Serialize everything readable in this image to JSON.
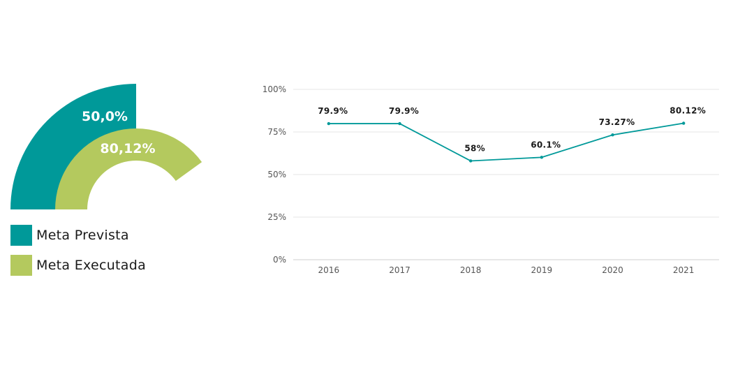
{
  "colors": {
    "previsto": "#009999",
    "executado": "#b4c95e",
    "line": "#009999",
    "grid": "#e6e6e6"
  },
  "legend": {
    "previsto_label": "Meta Prevista",
    "executado_label": "Meta Executada"
  },
  "chart_data": [
    {
      "type": "gauge",
      "series": [
        {
          "name": "Meta Prevista",
          "value": 50.0,
          "label": "50,0%"
        },
        {
          "name": "Meta Executada",
          "value": 80.12,
          "label": "80,12%"
        }
      ],
      "range": [
        0,
        100
      ]
    },
    {
      "type": "line",
      "x": [
        "2016",
        "2017",
        "2018",
        "2019",
        "2020",
        "2021"
      ],
      "series": [
        {
          "values": [
            79.9,
            79.9,
            58,
            60.1,
            73.27,
            80.12
          ],
          "labels": [
            "79.9%",
            "79.9%",
            "58%",
            "60.1%",
            "73.27%",
            "80.12%"
          ]
        }
      ],
      "ylim": [
        0,
        100
      ],
      "yticks": [
        "0%",
        "25%",
        "50%",
        "75%",
        "100%"
      ],
      "grid": true,
      "xlabel": "",
      "ylabel": "",
      "title": ""
    }
  ]
}
